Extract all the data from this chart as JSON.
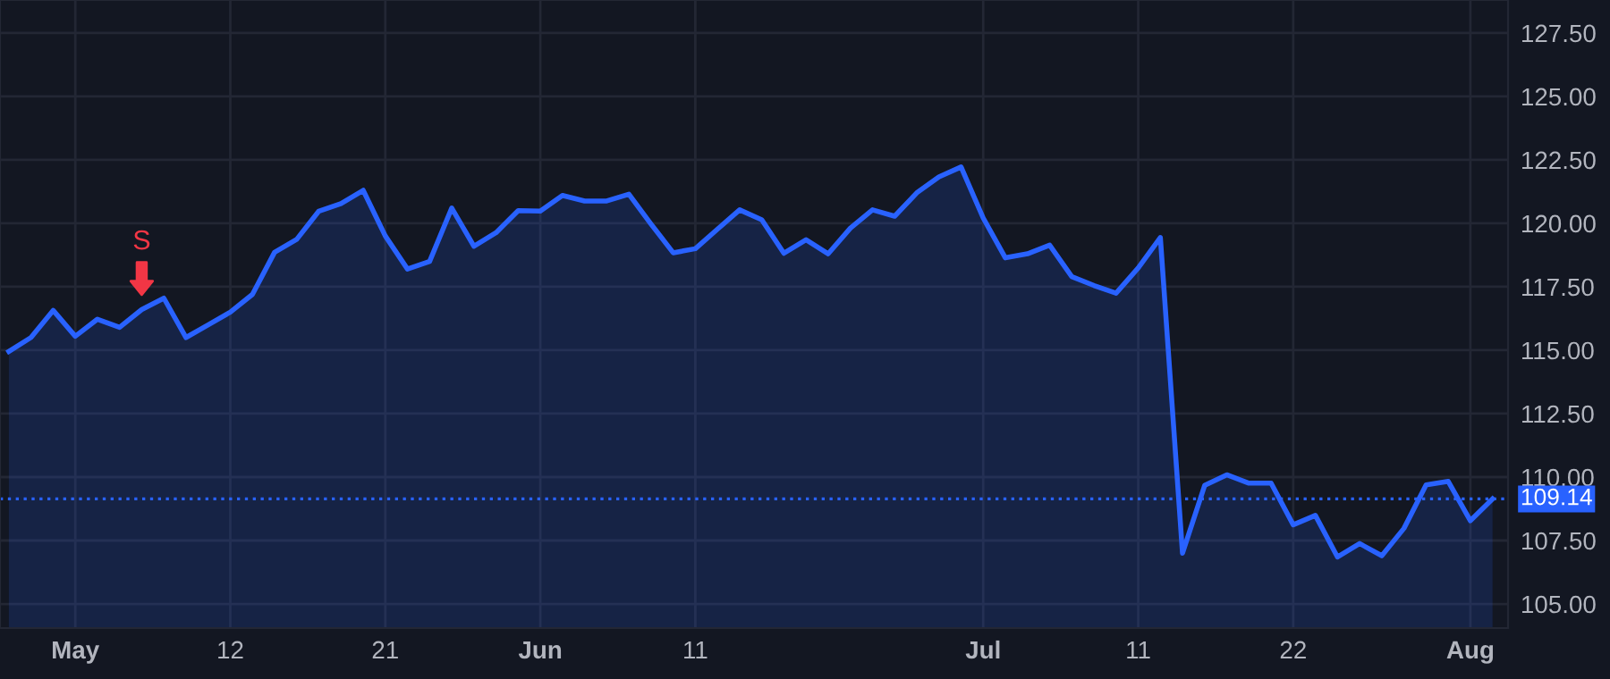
{
  "chart_data": {
    "type": "area",
    "categories": [
      null,
      null,
      null,
      "May",
      null,
      null,
      null,
      null,
      null,
      null,
      "12",
      null,
      null,
      null,
      null,
      null,
      null,
      "21",
      null,
      null,
      null,
      null,
      null,
      null,
      "Jun",
      null,
      null,
      null,
      null,
      null,
      null,
      "11",
      null,
      null,
      null,
      null,
      null,
      null,
      null,
      null,
      null,
      null,
      null,
      null,
      "Jul",
      null,
      null,
      null,
      null,
      null,
      null,
      "11",
      null,
      null,
      null,
      null,
      null,
      null,
      "22",
      null,
      null,
      null,
      null,
      null,
      null,
      null,
      "Aug",
      null
    ],
    "series": [
      {
        "color": "#2962ff",
        "values": [
          114.95,
          115.5,
          116.57,
          115.55,
          116.22,
          115.9,
          116.6,
          117.05,
          115.5,
          116.0,
          116.5,
          117.2,
          118.86,
          119.37,
          120.48,
          120.78,
          121.3,
          119.5,
          118.2,
          118.5,
          120.6,
          119.1,
          119.63,
          120.5,
          120.48,
          121.1,
          120.88,
          120.88,
          121.15,
          119.97,
          118.84,
          119.0,
          119.77,
          120.53,
          120.14,
          118.82,
          119.35,
          118.8,
          119.81,
          120.53,
          120.28,
          121.2,
          121.83,
          122.22,
          120.21,
          118.64,
          118.8,
          119.14,
          117.9,
          117.55,
          117.25,
          118.24,
          119.44,
          107.0,
          109.67,
          110.09,
          109.76,
          109.76,
          108.12,
          108.49,
          106.85,
          107.38,
          106.9,
          107.98,
          109.69,
          109.83,
          108.28,
          109.14
        ]
      }
    ],
    "ylim": [
      104.05,
      128.8
    ],
    "yticks": [
      {
        "value": 105,
        "label": "105.00"
      },
      {
        "value": 107.5,
        "label": "107.50"
      },
      {
        "value": 110,
        "label": "110.00"
      },
      {
        "value": 112.5,
        "label": "112.50"
      },
      {
        "value": 115,
        "label": "115.00"
      },
      {
        "value": 117.5,
        "label": "117.50"
      },
      {
        "value": 120,
        "label": "120.00"
      },
      {
        "value": 122.5,
        "label": "122.50"
      },
      {
        "value": 125,
        "label": "125.00"
      },
      {
        "value": 127.5,
        "label": "127.50"
      }
    ],
    "ref_lines": [
      {
        "axis": "y",
        "value": 109.14,
        "label": "109.14",
        "color": "#2962ff",
        "line_style": "dotted"
      }
    ],
    "annotations": [
      {
        "text": "S",
        "y": 116.6
      }
    ],
    "grid": true,
    "marker": "none",
    "line_style": "solid",
    "legend": false
  }
}
